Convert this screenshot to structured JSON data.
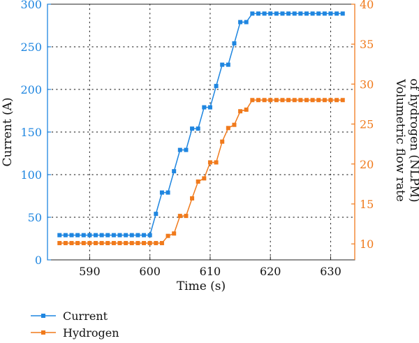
{
  "chart_data": {
    "type": "line",
    "xlabel": "Time (s)",
    "ylabel_left": "Current (A)",
    "ylabel_right_line1": "Volumetric flow rate",
    "ylabel_right_line2": "of hydrogen (NLPM)",
    "xlim": [
      583,
      634
    ],
    "ylim_left": [
      0,
      300
    ],
    "ylim_right": [
      8,
      40
    ],
    "x_ticks": [
      590,
      600,
      610,
      620,
      630
    ],
    "y_left_ticks": [
      0,
      50,
      100,
      150,
      200,
      250,
      300
    ],
    "y_right_ticks": [
      10,
      15,
      20,
      25,
      30,
      35,
      40
    ],
    "grid": true,
    "legend_position": "below-left",
    "series": [
      {
        "name": "Current",
        "axis": "left",
        "color": "#1f86e0",
        "x": [
          585,
          586,
          587,
          588,
          589,
          590,
          591,
          592,
          593,
          594,
          595,
          596,
          597,
          598,
          599,
          600,
          601,
          602,
          603,
          604,
          605,
          606,
          607,
          608,
          609,
          610,
          611,
          612,
          613,
          614,
          615,
          616,
          617,
          618,
          619,
          620,
          621,
          622,
          623,
          624,
          625,
          626,
          627,
          628,
          629,
          630,
          631,
          632
        ],
        "y": [
          29,
          29,
          29,
          29,
          29,
          29,
          29,
          29,
          29,
          29,
          29,
          29,
          29,
          29,
          29,
          29,
          54,
          79,
          79,
          104,
          129,
          129,
          154,
          154,
          179,
          179,
          204,
          229,
          229,
          254,
          279,
          279,
          289,
          289,
          289,
          289,
          289,
          289,
          289,
          289,
          289,
          289,
          289,
          289,
          289,
          289,
          289,
          289
        ]
      },
      {
        "name": "Hydrogen",
        "axis": "right",
        "color": "#f07a1c",
        "x": [
          585,
          586,
          587,
          588,
          589,
          590,
          591,
          592,
          593,
          594,
          595,
          596,
          597,
          598,
          599,
          600,
          601,
          602,
          603,
          604,
          605,
          606,
          607,
          608,
          609,
          610,
          611,
          612,
          613,
          614,
          615,
          616,
          617,
          618,
          619,
          620,
          621,
          622,
          623,
          624,
          625,
          626,
          627,
          628,
          629,
          630,
          631,
          632
        ],
        "y": [
          10.1,
          10.1,
          10.1,
          10.1,
          10.1,
          10.1,
          10.1,
          10.1,
          10.1,
          10.1,
          10.1,
          10.1,
          10.1,
          10.1,
          10.1,
          10.1,
          10.1,
          10.1,
          11.0,
          11.3,
          13.5,
          13.5,
          15.7,
          17.8,
          18.2,
          20.2,
          20.2,
          22.8,
          24.5,
          24.9,
          26.6,
          26.8,
          28.0,
          28.0,
          28.0,
          28.0,
          28.0,
          28.0,
          28.0,
          28.0,
          28.0,
          28.0,
          28.0,
          28.0,
          28.0,
          28.0,
          28.0,
          28.0
        ]
      }
    ]
  }
}
